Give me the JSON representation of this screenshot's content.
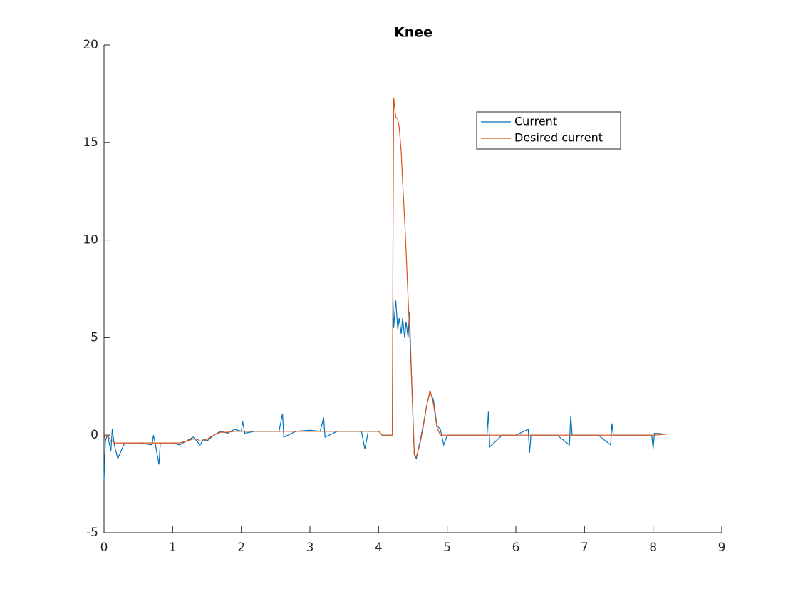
{
  "chart_data": {
    "type": "line",
    "title": "Knee",
    "x": [
      0,
      0.02,
      0.05,
      0.1,
      0.12,
      0.15,
      0.2,
      0.3,
      0.5,
      0.7,
      0.72,
      0.75,
      0.8,
      0.82,
      1.0,
      1.1,
      1.2,
      1.3,
      1.35,
      1.4,
      1.45,
      1.5,
      1.6,
      1.7,
      1.8,
      1.9,
      2.0,
      2.02,
      2.05,
      2.2,
      2.4,
      2.55,
      2.6,
      2.62,
      2.8,
      3.0,
      3.15,
      3.2,
      3.22,
      3.4,
      3.6,
      3.75,
      3.8,
      3.85,
      4.0,
      4.05,
      4.2,
      4.21,
      4.22,
      4.25,
      4.28,
      4.3,
      4.33,
      4.35,
      4.38,
      4.4,
      4.43,
      4.45,
      4.48,
      4.5,
      4.52,
      4.55,
      4.6,
      4.65,
      4.7,
      4.72,
      4.75,
      4.8,
      4.85,
      4.9,
      4.95,
      5.0,
      5.2,
      5.4,
      5.58,
      5.6,
      5.62,
      5.8,
      6.0,
      6.18,
      6.2,
      6.22,
      6.4,
      6.6,
      6.78,
      6.8,
      6.82,
      7.0,
      7.2,
      7.38,
      7.4,
      7.42,
      7.6,
      7.8,
      7.98,
      8.0,
      8.02,
      8.2
    ],
    "series": [
      {
        "name": "Current",
        "color": "#0072bd",
        "values": [
          -2.3,
          -0.3,
          0,
          -0.8,
          0.3,
          -0.5,
          -1.2,
          -0.4,
          -0.4,
          -0.5,
          0,
          -0.5,
          -1.5,
          -0.4,
          -0.4,
          -0.5,
          -0.3,
          -0.1,
          -0.3,
          -0.5,
          -0.2,
          -0.3,
          0,
          0.2,
          0.1,
          0.3,
          0.2,
          0.7,
          0.1,
          0.2,
          0.2,
          0.2,
          1.1,
          -0.1,
          0.2,
          0.25,
          0.2,
          0.9,
          -0.1,
          0.2,
          0.2,
          0.2,
          -0.7,
          0.2,
          0.2,
          0,
          0,
          6.9,
          5.5,
          6.9,
          5.4,
          6.0,
          5.2,
          6.0,
          5.0,
          5.8,
          5.0,
          6.3,
          3.0,
          1.0,
          -1.0,
          -1.2,
          -0.4,
          0.5,
          1.5,
          1.8,
          2.2,
          1.8,
          0.5,
          0.3,
          -0.5,
          0,
          0,
          0,
          0,
          1.2,
          -0.6,
          0,
          0,
          0.3,
          -0.9,
          0,
          0,
          0,
          -0.5,
          1.0,
          0,
          0,
          0,
          -0.5,
          0.6,
          0,
          0,
          0,
          0,
          -0.7,
          0.1,
          0.05
        ]
      },
      {
        "name": "Desired current",
        "color": "#d95319",
        "values": [
          -0.2,
          0,
          0,
          -0.3,
          -0.3,
          -0.4,
          -0.4,
          -0.4,
          -0.4,
          -0.4,
          -0.4,
          -0.4,
          -0.4,
          -0.4,
          -0.4,
          -0.4,
          -0.3,
          -0.2,
          -0.2,
          -0.3,
          -0.3,
          -0.2,
          0,
          0.15,
          0.15,
          0.2,
          0.2,
          0.2,
          0.2,
          0.2,
          0.2,
          0.2,
          0.2,
          0.2,
          0.2,
          0.2,
          0.2,
          0.2,
          0.2,
          0.2,
          0.2,
          0.2,
          0.2,
          0.2,
          0.2,
          0,
          0,
          10,
          17.3,
          16.3,
          16.2,
          15.8,
          14.5,
          13,
          11,
          9.5,
          7,
          5.5,
          3,
          1,
          -1,
          -1.1,
          -0.5,
          0.4,
          1.5,
          1.8,
          2.3,
          1.6,
          0.4,
          0,
          0,
          0,
          0,
          0,
          0,
          0,
          0,
          0,
          0,
          0,
          0,
          0,
          0,
          0,
          0,
          0,
          0,
          0,
          0,
          0,
          0,
          0,
          0,
          0,
          0,
          0,
          0,
          0.05
        ]
      }
    ],
    "xlim": [
      0,
      9
    ],
    "xticks": [
      0,
      1,
      2,
      3,
      4,
      5,
      6,
      7,
      8,
      9
    ],
    "ylim": [
      -5,
      20
    ],
    "yticks": [
      -5,
      0,
      5,
      10,
      15,
      20
    ],
    "legend": "northeast"
  }
}
